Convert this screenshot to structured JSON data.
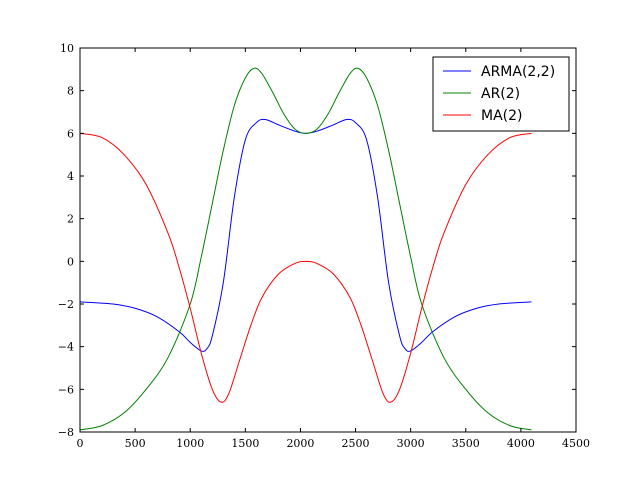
{
  "chart_data": {
    "type": "line",
    "title": "",
    "xlabel": "",
    "ylabel": "",
    "xlim": [
      0,
      4500
    ],
    "ylim": [
      -8,
      10
    ],
    "xticks": [
      0,
      500,
      1000,
      1500,
      2000,
      2500,
      3000,
      3500,
      4000,
      4500
    ],
    "yticks": [
      -8,
      -6,
      -4,
      -2,
      0,
      2,
      4,
      6,
      8,
      10
    ],
    "grid": false,
    "legend": {
      "position": "top-right"
    },
    "series": [
      {
        "name": "ARMA(2,2)",
        "color": "#0000ff",
        "points": [
          [
            0,
            -1.9
          ],
          [
            300,
            -2.0
          ],
          [
            500,
            -2.2
          ],
          [
            700,
            -2.6
          ],
          [
            900,
            -3.3
          ],
          [
            1000,
            -3.8
          ],
          [
            1100,
            -4.2
          ],
          [
            1150,
            -4.1
          ],
          [
            1200,
            -3.5
          ],
          [
            1300,
            -1.0
          ],
          [
            1400,
            3.0
          ],
          [
            1500,
            5.7
          ],
          [
            1600,
            6.5
          ],
          [
            1680,
            6.65
          ],
          [
            1800,
            6.4
          ],
          [
            1950,
            6.1
          ],
          [
            2048,
            6.0
          ],
          [
            2150,
            6.1
          ],
          [
            2300,
            6.4
          ],
          [
            2420,
            6.65
          ],
          [
            2500,
            6.5
          ],
          [
            2600,
            5.7
          ],
          [
            2700,
            3.0
          ],
          [
            2800,
            -1.0
          ],
          [
            2900,
            -3.5
          ],
          [
            2950,
            -4.1
          ],
          [
            3000,
            -4.2
          ],
          [
            3100,
            -3.8
          ],
          [
            3200,
            -3.3
          ],
          [
            3400,
            -2.6
          ],
          [
            3600,
            -2.2
          ],
          [
            3800,
            -2.0
          ],
          [
            4096,
            -1.9
          ]
        ]
      },
      {
        "name": "AR(2)",
        "color": "#008000",
        "points": [
          [
            0,
            -7.9
          ],
          [
            200,
            -7.7
          ],
          [
            400,
            -7.1
          ],
          [
            600,
            -6.0
          ],
          [
            800,
            -4.5
          ],
          [
            1000,
            -2.0
          ],
          [
            1100,
            0.2
          ],
          [
            1200,
            2.7
          ],
          [
            1300,
            5.2
          ],
          [
            1400,
            7.3
          ],
          [
            1500,
            8.6
          ],
          [
            1580,
            9.05
          ],
          [
            1650,
            8.8
          ],
          [
            1750,
            7.9
          ],
          [
            1850,
            6.9
          ],
          [
            1950,
            6.2
          ],
          [
            2048,
            6.0
          ],
          [
            2150,
            6.2
          ],
          [
            2250,
            6.9
          ],
          [
            2350,
            7.9
          ],
          [
            2450,
            8.8
          ],
          [
            2520,
            9.05
          ],
          [
            2600,
            8.6
          ],
          [
            2700,
            7.3
          ],
          [
            2800,
            5.2
          ],
          [
            2900,
            2.7
          ],
          [
            3000,
            0.2
          ],
          [
            3100,
            -2.0
          ],
          [
            3300,
            -4.5
          ],
          [
            3500,
            -6.0
          ],
          [
            3700,
            -7.1
          ],
          [
            3900,
            -7.7
          ],
          [
            4096,
            -7.9
          ]
        ]
      },
      {
        "name": "MA(2)",
        "color": "#ff0000",
        "points": [
          [
            0,
            6.0
          ],
          [
            200,
            5.8
          ],
          [
            400,
            5.0
          ],
          [
            600,
            3.6
          ],
          [
            800,
            1.3
          ],
          [
            900,
            -0.3
          ],
          [
            1000,
            -2.2
          ],
          [
            1100,
            -4.3
          ],
          [
            1200,
            -6.0
          ],
          [
            1280,
            -6.6
          ],
          [
            1350,
            -6.2
          ],
          [
            1450,
            -4.6
          ],
          [
            1550,
            -3.0
          ],
          [
            1650,
            -1.7
          ],
          [
            1800,
            -0.6
          ],
          [
            1950,
            -0.1
          ],
          [
            2048,
            0.0
          ],
          [
            2150,
            -0.1
          ],
          [
            2300,
            -0.6
          ],
          [
            2450,
            -1.7
          ],
          [
            2550,
            -3.0
          ],
          [
            2650,
            -4.6
          ],
          [
            2750,
            -6.2
          ],
          [
            2820,
            -6.6
          ],
          [
            2900,
            -6.0
          ],
          [
            3000,
            -4.3
          ],
          [
            3100,
            -2.2
          ],
          [
            3200,
            -0.3
          ],
          [
            3300,
            1.3
          ],
          [
            3500,
            3.6
          ],
          [
            3700,
            5.0
          ],
          [
            3900,
            5.8
          ],
          [
            4096,
            6.0
          ]
        ]
      }
    ]
  }
}
